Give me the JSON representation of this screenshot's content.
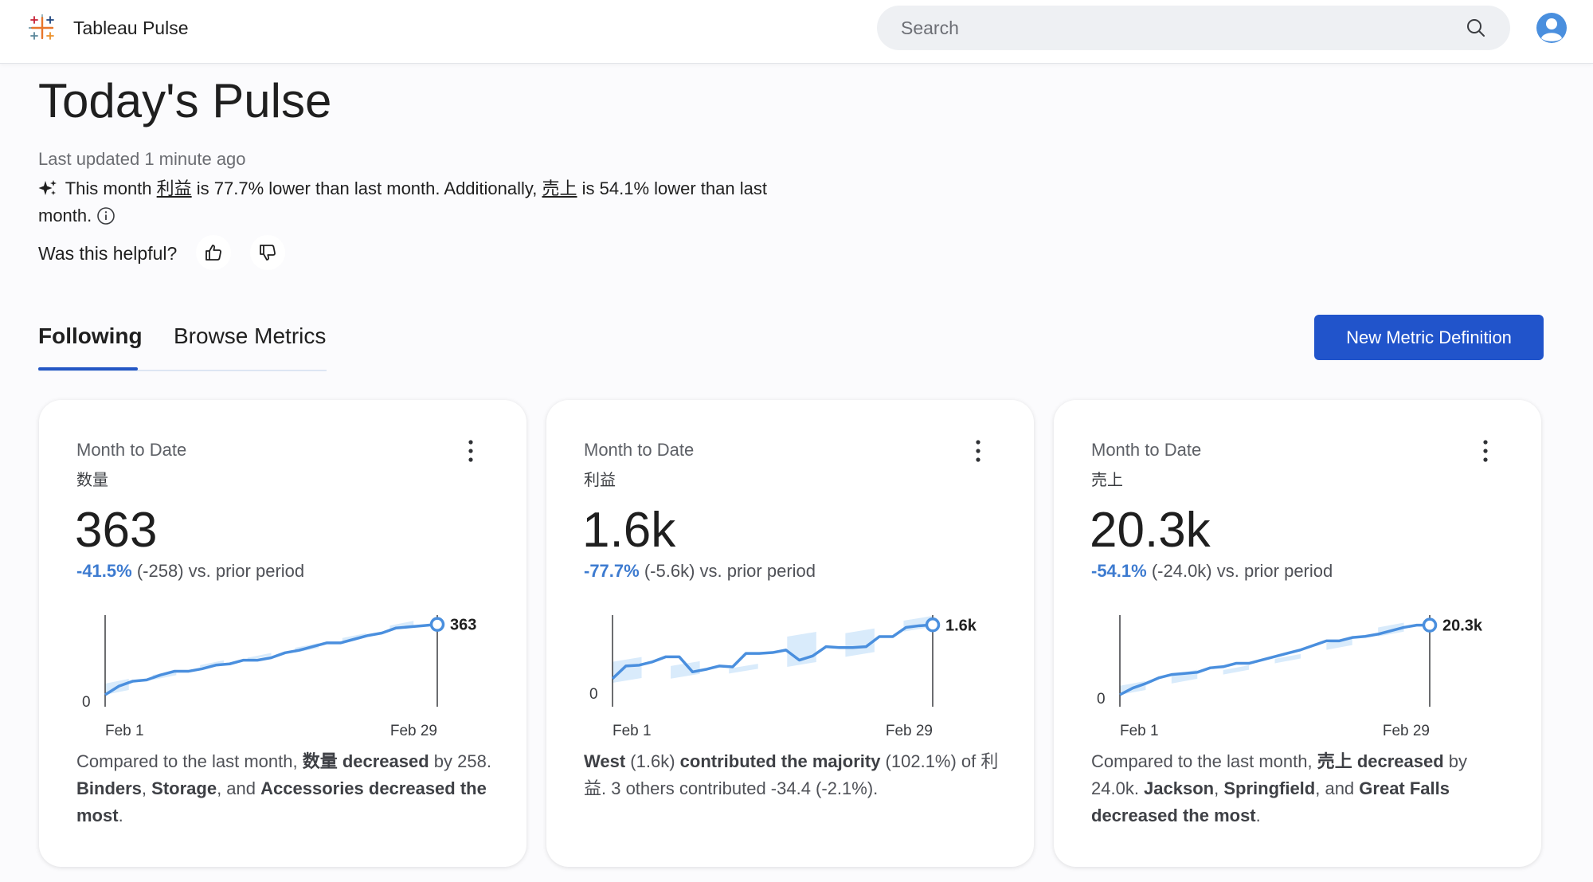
{
  "app": {
    "title": "Tableau Pulse"
  },
  "search": {
    "placeholder": "Search"
  },
  "header": {
    "title": "Today's Pulse",
    "updated": "Last updated 1 minute ago",
    "summary": {
      "p1": " This month ",
      "m1": "利益",
      "p2": " is 77.7% lower than last month. Additionally, ",
      "m2": "売上",
      "p3": " is 54.1% lower than last month."
    },
    "helpful": "Was this helpful?"
  },
  "tabs": [
    {
      "label": "Following",
      "active": true
    },
    {
      "label": "Browse Metrics",
      "active": false
    }
  ],
  "new_metric_label": "New Metric Definition",
  "colors": {
    "accent": "#2154cb",
    "line": "#4a8fde",
    "band": "#d9ebfb",
    "negative": "#3d7bd0"
  },
  "cards": [
    {
      "period": "Month to Date",
      "metric": "数量",
      "value": "363",
      "change_pct": "-41.5%",
      "change_rest": " (-258) vs. prior period",
      "x_start": "Feb 1",
      "x_end": "Feb 29",
      "zero_label": "0",
      "end_label": "363",
      "series": [
        0,
        35,
        55,
        60,
        80,
        95,
        95,
        105,
        120,
        125,
        140,
        140,
        150,
        170,
        180,
        195,
        210,
        210,
        225,
        240,
        250,
        270,
        275,
        280,
        285
      ],
      "band": [
        [
          0,
          45
        ],
        [
          40,
          70
        ],
        [
          60,
          80
        ],
        [
          90,
          110
        ],
        [
          110,
          120
        ],
        [
          125,
          150
        ],
        [
          140,
          150
        ],
        [
          150,
          160
        ],
        [
          170,
          190
        ],
        [
          200,
          215
        ],
        [
          215,
          230
        ],
        [
          230,
          260
        ],
        [
          260,
          280
        ],
        [
          280,
          300
        ]
      ],
      "insight": {
        "a": "Compared to the last month, ",
        "b": "数量 decreased",
        "c": " by 258. ",
        "d": "Binders",
        "e": ", ",
        "f": "Storage",
        "g": ", and ",
        "h": "Accessories decreased the most",
        "i": "."
      }
    },
    {
      "period": "Month to Date",
      "metric": "利益",
      "value": "1.6k",
      "change_pct": "-77.7%",
      "change_rest": " (-5.6k) vs. prior period",
      "x_start": "Feb 1",
      "x_end": "Feb 29",
      "zero_label": "0",
      "end_label": "1.6k",
      "series": [
        500,
        650,
        660,
        700,
        760,
        760,
        580,
        610,
        650,
        640,
        800,
        800,
        810,
        840,
        720,
        770,
        880,
        870,
        870,
        880,
        1000,
        1000,
        1110,
        1130,
        1140
      ],
      "band": [
        [
          450,
          700
        ],
        [
          480,
          760
        ],
        [
          500,
          650
        ],
        [
          550,
          900
        ],
        [
          560,
          620
        ],
        [
          600,
          650
        ],
        [
          640,
          1000
        ],
        [
          660,
          1000
        ],
        [
          760,
          1040
        ],
        [
          900,
          1100
        ],
        [
          1060,
          1190
        ]
      ],
      "insight": {
        "a": "",
        "b": "West",
        "c": " (1.6k) ",
        "d": "contributed the majority",
        "e": " (102.1%) of 利益. 3 others contributed -34.4 (-2.1%).",
        "f": "",
        "g": "",
        "h": "",
        "i": ""
      }
    },
    {
      "period": "Month to Date",
      "metric": "売上",
      "value": "20.3k",
      "change_pct": "-54.1%",
      "change_rest": " (-24.0k) vs. prior period",
      "x_start": "Feb 1",
      "x_end": "Feb 29",
      "zero_label": "0",
      "end_label": "20.3k",
      "series": [
        0,
        30,
        50,
        75,
        90,
        95,
        100,
        120,
        125,
        140,
        140,
        155,
        170,
        185,
        200,
        220,
        240,
        240,
        255,
        260,
        270,
        285,
        300,
        310,
        310
      ],
      "band": [
        [
          0,
          40
        ],
        [
          20,
          60
        ],
        [
          50,
          90
        ],
        [
          70,
          110
        ],
        [
          90,
          110
        ],
        [
          110,
          130
        ],
        [
          140,
          160
        ],
        [
          170,
          200
        ],
        [
          200,
          230
        ],
        [
          230,
          260
        ],
        [
          260,
          300
        ],
        [
          280,
          330
        ]
      ],
      "insight": {
        "a": "Compared to the last month, ",
        "b": "売上 decreased",
        "c": " by 24.0k. ",
        "d": "Jackson",
        "e": ", ",
        "f": "Springfield",
        "g": ", and ",
        "h": "Great Falls decreased the most",
        "i": "."
      }
    }
  ]
}
